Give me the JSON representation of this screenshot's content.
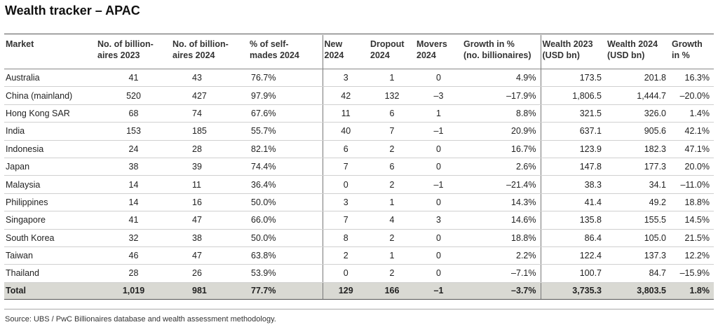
{
  "title": "Wealth tracker – APAC",
  "headers": {
    "market": "Market",
    "b2023_l1": "No. of billion-",
    "b2023_l2": "aires 2023",
    "b2024_l1": "No. of billion-",
    "b2024_l2": "aires 2024",
    "self_l1": "% of self-",
    "self_l2": "mades 2024",
    "new_l1": "New",
    "new_l2": "2024",
    "drop_l1": "Dropout",
    "drop_l2": "2024",
    "mov_l1": "Movers",
    "mov_l2": "2024",
    "growth_l1": "Growth in %",
    "growth_l2": "(no. billionaires)",
    "w2023_l1": "Wealth 2023",
    "w2023_l2": "(USD bn)",
    "w2024_l1": "Wealth 2024",
    "w2024_l2": "(USD bn)",
    "wg_l1": "Growth",
    "wg_l2": "in %"
  },
  "rows": [
    {
      "market": "Australia",
      "b2023": "41",
      "b2024": "43",
      "self": "76.7%",
      "new": "3",
      "dropout": "1",
      "movers": "0",
      "growth": "4.9%",
      "w2023": "173.5",
      "w2024": "201.8",
      "wgrowth": "16.3%"
    },
    {
      "market": "China (mainland)",
      "b2023": "520",
      "b2024": "427",
      "self": "97.9%",
      "new": "42",
      "dropout": "132",
      "movers": "–3",
      "growth": "–17.9%",
      "w2023": "1,806.5",
      "w2024": "1,444.7",
      "wgrowth": "–20.0%"
    },
    {
      "market": "Hong Kong SAR",
      "b2023": "68",
      "b2024": "74",
      "self": "67.6%",
      "new": "11",
      "dropout": "6",
      "movers": "1",
      "growth": "8.8%",
      "w2023": "321.5",
      "w2024": "326.0",
      "wgrowth": "1.4%"
    },
    {
      "market": "India",
      "b2023": "153",
      "b2024": "185",
      "self": "55.7%",
      "new": "40",
      "dropout": "7",
      "movers": "–1",
      "growth": "20.9%",
      "w2023": "637.1",
      "w2024": "905.6",
      "wgrowth": "42.1%"
    },
    {
      "market": "Indonesia",
      "b2023": "24",
      "b2024": "28",
      "self": "82.1%",
      "new": "6",
      "dropout": "2",
      "movers": "0",
      "growth": "16.7%",
      "w2023": "123.9",
      "w2024": "182.3",
      "wgrowth": "47.1%"
    },
    {
      "market": "Japan",
      "b2023": "38",
      "b2024": "39",
      "self": "74.4%",
      "new": "7",
      "dropout": "6",
      "movers": "0",
      "growth": "2.6%",
      "w2023": "147.8",
      "w2024": "177.3",
      "wgrowth": "20.0%"
    },
    {
      "market": "Malaysia",
      "b2023": "14",
      "b2024": "11",
      "self": "36.4%",
      "new": "0",
      "dropout": "2",
      "movers": "–1",
      "growth": "–21.4%",
      "w2023": "38.3",
      "w2024": "34.1",
      "wgrowth": "–11.0%"
    },
    {
      "market": "Philippines",
      "b2023": "14",
      "b2024": "16",
      "self": "50.0%",
      "new": "3",
      "dropout": "1",
      "movers": "0",
      "growth": "14.3%",
      "w2023": "41.4",
      "w2024": "49.2",
      "wgrowth": "18.8%"
    },
    {
      "market": "Singapore",
      "b2023": "41",
      "b2024": "47",
      "self": "66.0%",
      "new": "7",
      "dropout": "4",
      "movers": "3",
      "growth": "14.6%",
      "w2023": "135.8",
      "w2024": "155.5",
      "wgrowth": "14.5%"
    },
    {
      "market": "South Korea",
      "b2023": "32",
      "b2024": "38",
      "self": "50.0%",
      "new": "8",
      "dropout": "2",
      "movers": "0",
      "growth": "18.8%",
      "w2023": "86.4",
      "w2024": "105.0",
      "wgrowth": "21.5%"
    },
    {
      "market": "Taiwan",
      "b2023": "46",
      "b2024": "47",
      "self": "63.8%",
      "new": "2",
      "dropout": "1",
      "movers": "0",
      "growth": "2.2%",
      "w2023": "122.4",
      "w2024": "137.3",
      "wgrowth": "12.2%"
    },
    {
      "market": "Thailand",
      "b2023": "28",
      "b2024": "26",
      "self": "53.9%",
      "new": "0",
      "dropout": "2",
      "movers": "0",
      "growth": "–7.1%",
      "w2023": "100.7",
      "w2024": "84.7",
      "wgrowth": "–15.9%"
    }
  ],
  "total": {
    "market": "Total",
    "b2023": "1,019",
    "b2024": "981",
    "self": "77.7%",
    "new": "129",
    "dropout": "166",
    "movers": "–1",
    "growth": "–3.7%",
    "w2023": "3,735.3",
    "w2024": "3,803.5",
    "wgrowth": "1.8%"
  },
  "source": "Source: UBS / PwC Billionaires database and wealth assessment methodology."
}
